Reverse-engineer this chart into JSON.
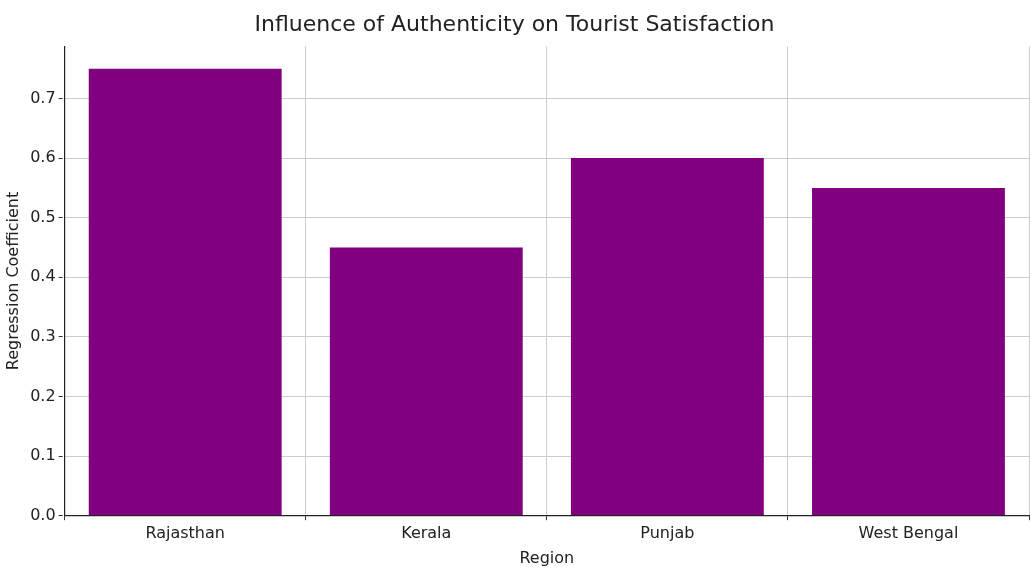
{
  "chart_data": {
    "type": "bar",
    "title": "Influence of Authenticity on Tourist Satisfaction",
    "xlabel": "Region",
    "ylabel": "Regression Coefficient",
    "categories": [
      "Rajasthan",
      "Kerala",
      "Punjab",
      "West Bengal"
    ],
    "values": [
      0.75,
      0.45,
      0.6,
      0.55
    ],
    "color": "#800080",
    "ylim": [
      0,
      0.7875
    ],
    "yticks": [
      {
        "value": 0,
        "label": "0.0"
      },
      {
        "value": 0.1,
        "label": "0.1"
      },
      {
        "value": 0.2,
        "label": "0.2"
      },
      {
        "value": 0.3,
        "label": "0.3"
      },
      {
        "value": 0.4,
        "label": "0.4"
      },
      {
        "value": 0.5,
        "label": "0.5"
      },
      {
        "value": 0.6,
        "label": "0.6"
      },
      {
        "value": 0.7,
        "label": "0.7"
      }
    ],
    "grid": true
  }
}
